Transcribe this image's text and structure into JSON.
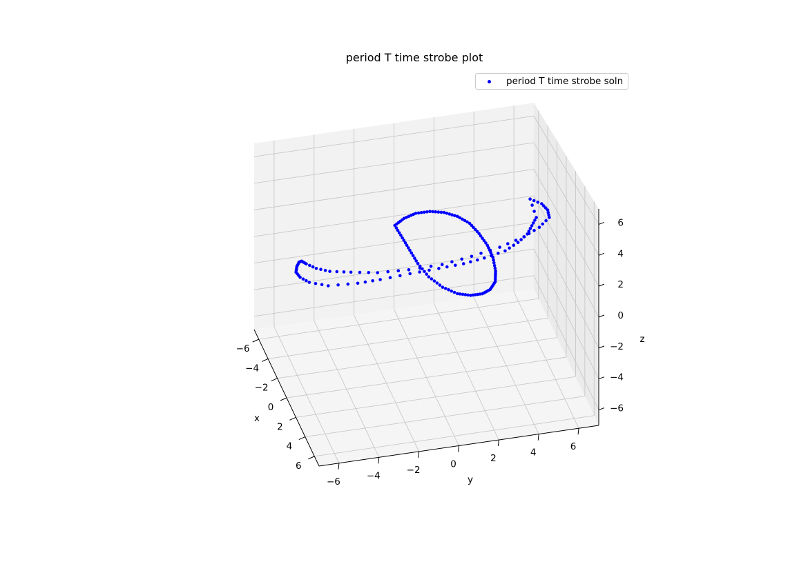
{
  "chart_data": {
    "type": "scatter",
    "title": "period T time strobe plot",
    "xlabel": "x",
    "ylabel": "y",
    "zlabel": "z",
    "xlim": [
      -7,
      7
    ],
    "ylim": [
      -7,
      7
    ],
    "zlim": [
      -7,
      7
    ],
    "x_ticks": [
      "−6",
      "−4",
      "−2",
      "0",
      "2",
      "4",
      "6"
    ],
    "y_ticks": [
      "−6",
      "−4",
      "−2",
      "0",
      "2",
      "4",
      "6"
    ],
    "z_ticks": [
      "−6",
      "−4",
      "−2",
      "0",
      "2",
      "4",
      "6"
    ],
    "grid": true,
    "legend_position": "top-right",
    "series": [
      {
        "name": "period T time strobe soln",
        "color": "#0000ff",
        "marker": "dot",
        "points_xyz": [
          [
            -2.2,
            5.7,
            3.0
          ],
          [
            -1.0,
            6.0,
            3.3
          ],
          [
            0.3,
            6.0,
            3.6
          ],
          [
            1.5,
            5.8,
            3.8
          ],
          [
            2.8,
            5.0,
            4.0
          ],
          [
            3.8,
            4.0,
            4.1
          ],
          [
            4.6,
            2.6,
            4.1
          ],
          [
            5.0,
            1.1,
            4.0
          ],
          [
            5.1,
            -0.4,
            3.8
          ],
          [
            4.8,
            -2.0,
            3.6
          ],
          [
            4.1,
            -3.4,
            3.3
          ],
          [
            3.1,
            -4.5,
            3.0
          ],
          [
            2.0,
            -5.3,
            2.6
          ],
          [
            0.8,
            -5.7,
            2.2
          ],
          [
            -0.5,
            -5.9,
            1.8
          ],
          [
            -1.5,
            -5.9,
            1.4
          ],
          [
            -2.5,
            -5.8,
            0.7
          ],
          [
            -3.4,
            -5.7,
            -0.2
          ],
          [
            -4.0,
            -5.6,
            -1.0
          ],
          [
            -4.4,
            -5.3,
            -1.7
          ],
          [
            -4.6,
            -4.8,
            -2.3
          ],
          [
            -4.8,
            -3.8,
            -2.9
          ],
          [
            -4.9,
            -2.3,
            -3.1
          ],
          [
            -4.8,
            -1.2,
            -3.0
          ],
          [
            -4.4,
            0.2,
            -2.6
          ],
          [
            -3.8,
            1.5,
            -2.1
          ],
          [
            -3.2,
            2.6,
            -1.6
          ],
          [
            -2.6,
            3.5,
            -1.0
          ],
          [
            -2.0,
            4.4,
            -0.3
          ],
          [
            -1.8,
            5.0,
            0.3
          ],
          [
            -1.5,
            5.4,
            1.0
          ],
          [
            -1.4,
            5.6,
            1.6
          ],
          [
            -1.3,
            5.8,
            2.2
          ],
          [
            0.5,
            -1.7,
            4.2
          ],
          [
            1.2,
            -1.4,
            5.0
          ],
          [
            2.0,
            -1.0,
            5.7
          ],
          [
            2.9,
            -0.5,
            6.2
          ],
          [
            3.8,
            0.0,
            6.5
          ],
          [
            4.5,
            0.5,
            6.5
          ],
          [
            5.0,
            1.0,
            6.2
          ],
          [
            5.3,
            1.4,
            5.6
          ],
          [
            5.4,
            1.8,
            4.8
          ],
          [
            5.3,
            2.1,
            3.9
          ],
          [
            5.0,
            2.3,
            2.8
          ],
          [
            4.5,
            2.4,
            1.8
          ],
          [
            3.8,
            2.3,
            0.9
          ],
          [
            3.0,
            2.1,
            0.2
          ],
          [
            2.2,
            1.7,
            -0.3
          ],
          [
            1.5,
            1.2,
            -0.5
          ],
          [
            0.9,
            0.6,
            -0.3
          ],
          [
            0.5,
            0.0,
            0.3
          ],
          [
            0.3,
            -0.5,
            1.2
          ],
          [
            0.3,
            -0.9,
            2.2
          ],
          [
            0.4,
            -1.3,
            3.2
          ]
        ]
      }
    ]
  }
}
